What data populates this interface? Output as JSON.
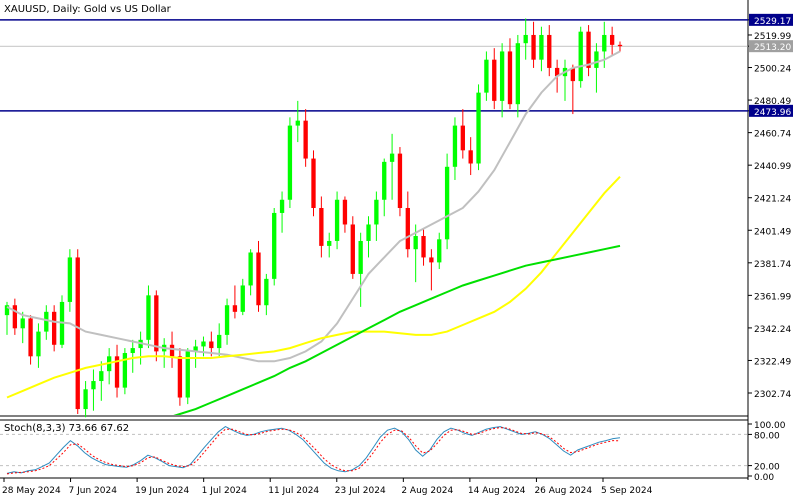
{
  "title": "XAUUSD, Daily:  Gold vs US Dollar",
  "price_labels": [
    "2529.17",
    "2519.99",
    "2513.20",
    "2500.24",
    "2480.49",
    "2473.96",
    "2460.74",
    "2440.99",
    "2421.24",
    "2401.49",
    "2381.74",
    "2361.99",
    "2342.24",
    "2322.49",
    "2302.74"
  ],
  "stoch_axis_labels": [
    "100.00",
    "80.00",
    "20.00",
    "0.00"
  ],
  "date_labels": [
    "28 May 2024",
    "7 Jun 2024",
    "19 Jun 2024",
    "1 Jul 2024",
    "11 Jul 2024",
    "23 Jul 2024",
    "2 Aug 2024",
    "14 Aug 2024",
    "26 Aug 2024",
    "5 Sep 2024"
  ],
  "stoch_label": "Stoch(8,3,3) 73.66 67.62",
  "colors": {
    "bull": "#00ff00",
    "bear": "#ff0000",
    "level_line": "#00008b",
    "ma_fast": "#c0c0c0",
    "ma_mid": "#ffff00",
    "ma_slow": "#00e000",
    "stoch_main": "#2e8bbf",
    "stoch_signal": "#ff0000"
  },
  "chart_data": [
    {
      "type": "candlestick",
      "title": "XAUUSD, Daily:  Gold vs US Dollar",
      "ylim": [
        2290,
        2540
      ],
      "levels": [
        2529.17,
        2473.96
      ],
      "current_price": 2513.2,
      "dates": [
        "28 May 2024",
        "7 Jun 2024",
        "19 Jun 2024",
        "1 Jul 2024",
        "11 Jul 2024",
        "23 Jul 2024",
        "2 Aug 2024",
        "14 Aug 2024",
        "26 Aug 2024",
        "5 Sep 2024"
      ],
      "candles": [
        [
          2350,
          2358,
          2338,
          2356
        ],
        [
          2356,
          2360,
          2338,
          2342
        ],
        [
          2342,
          2352,
          2333,
          2348
        ],
        [
          2348,
          2350,
          2320,
          2325
        ],
        [
          2325,
          2345,
          2318,
          2340
        ],
        [
          2340,
          2356,
          2335,
          2352
        ],
        [
          2352,
          2356,
          2328,
          2332
        ],
        [
          2332,
          2362,
          2330,
          2358
        ],
        [
          2358,
          2390,
          2352,
          2385
        ],
        [
          2385,
          2390,
          2290,
          2293
        ],
        [
          2293,
          2310,
          2288,
          2305
        ],
        [
          2305,
          2317,
          2292,
          2310
        ],
        [
          2310,
          2322,
          2298,
          2316
        ],
        [
          2316,
          2330,
          2308,
          2325
        ],
        [
          2325,
          2332,
          2300,
          2306
        ],
        [
          2306,
          2330,
          2302,
          2327
        ],
        [
          2327,
          2335,
          2315,
          2330
        ],
        [
          2330,
          2340,
          2320,
          2335
        ],
        [
          2335,
          2368,
          2330,
          2362
        ],
        [
          2362,
          2365,
          2322,
          2328
        ],
        [
          2328,
          2336,
          2318,
          2332
        ],
        [
          2332,
          2340,
          2318,
          2325
        ],
        [
          2325,
          2330,
          2295,
          2300
        ],
        [
          2300,
          2330,
          2296,
          2328
        ],
        [
          2328,
          2335,
          2318,
          2331
        ],
        [
          2331,
          2337,
          2325,
          2334
        ],
        [
          2334,
          2340,
          2325,
          2330
        ],
        [
          2330,
          2345,
          2325,
          2338
        ],
        [
          2338,
          2360,
          2332,
          2356
        ],
        [
          2356,
          2368,
          2348,
          2352
        ],
        [
          2352,
          2372,
          2350,
          2368
        ],
        [
          2368,
          2390,
          2362,
          2388
        ],
        [
          2388,
          2395,
          2352,
          2356
        ],
        [
          2356,
          2375,
          2350,
          2372
        ],
        [
          2372,
          2415,
          2368,
          2412
        ],
        [
          2412,
          2425,
          2400,
          2420
        ],
        [
          2420,
          2470,
          2415,
          2465
        ],
        [
          2465,
          2480,
          2455,
          2468
        ],
        [
          2468,
          2475,
          2440,
          2445
        ],
        [
          2445,
          2450,
          2410,
          2415
        ],
        [
          2415,
          2422,
          2385,
          2392
        ],
        [
          2392,
          2400,
          2385,
          2395
        ],
        [
          2395,
          2425,
          2390,
          2420
        ],
        [
          2420,
          2422,
          2400,
          2405
        ],
        [
          2405,
          2410,
          2372,
          2375
        ],
        [
          2375,
          2400,
          2355,
          2395
        ],
        [
          2395,
          2410,
          2385,
          2405
        ],
        [
          2405,
          2425,
          2395,
          2420
        ],
        [
          2420,
          2445,
          2410,
          2443
        ],
        [
          2443,
          2460,
          2420,
          2448
        ],
        [
          2448,
          2452,
          2410,
          2415
        ],
        [
          2415,
          2425,
          2385,
          2390
        ],
        [
          2390,
          2405,
          2370,
          2398
        ],
        [
          2398,
          2402,
          2380,
          2385
        ],
        [
          2385,
          2390,
          2365,
          2382
        ],
        [
          2382,
          2400,
          2378,
          2396
        ],
        [
          2396,
          2448,
          2390,
          2440
        ],
        [
          2440,
          2470,
          2432,
          2465
        ],
        [
          2465,
          2475,
          2445,
          2450
        ],
        [
          2450,
          2458,
          2435,
          2442
        ],
        [
          2442,
          2490,
          2438,
          2485
        ],
        [
          2485,
          2510,
          2480,
          2505
        ],
        [
          2505,
          2512,
          2475,
          2480
        ],
        [
          2480,
          2515,
          2470,
          2510
        ],
        [
          2510,
          2518,
          2475,
          2478
        ],
        [
          2478,
          2520,
          2470,
          2515
        ],
        [
          2515,
          2530,
          2505,
          2520
        ],
        [
          2520,
          2528,
          2500,
          2505
        ],
        [
          2505,
          2525,
          2498,
          2520
        ],
        [
          2520,
          2526,
          2495,
          2500
        ],
        [
          2500,
          2505,
          2485,
          2495
        ],
        [
          2495,
          2505,
          2480,
          2500
        ],
        [
          2500,
          2502,
          2472,
          2492
        ],
        [
          2492,
          2525,
          2488,
          2522
        ],
        [
          2522,
          2526,
          2495,
          2500
        ],
        [
          2500,
          2515,
          2485,
          2510
        ],
        [
          2510,
          2528,
          2500,
          2520
        ],
        [
          2520,
          2525,
          2508,
          2514
        ],
        [
          2514,
          2516,
          2510,
          2513.2
        ]
      ],
      "moving_averages": [
        {
          "color": "#c0c0c0",
          "values": [
            2355,
            2350,
            2348,
            2346,
            2345,
            2340,
            2338,
            2336,
            2334,
            2332,
            2330,
            2329,
            2328,
            2327,
            2326,
            2324,
            2322,
            2322,
            2324,
            2328,
            2334,
            2345,
            2360,
            2375,
            2385,
            2395,
            2400,
            2405,
            2410,
            2415,
            2425,
            2438,
            2455,
            2472,
            2485,
            2495,
            2500,
            2502,
            2505,
            2510
          ]
        },
        {
          "color": "#ffff00",
          "values": [
            2300,
            2304,
            2308,
            2312,
            2315,
            2318,
            2320,
            2322,
            2324,
            2325,
            2325,
            2324,
            2324,
            2324,
            2325,
            2326,
            2327,
            2328,
            2330,
            2333,
            2336,
            2338,
            2340,
            2340,
            2340,
            2339,
            2338,
            2338,
            2340,
            2344,
            2348,
            2352,
            2358,
            2366,
            2376,
            2388,
            2400,
            2412,
            2424,
            2434
          ]
        },
        {
          "color": "#00e000",
          "values": [
            2250,
            2254,
            2258,
            2262,
            2266,
            2270,
            2274,
            2278,
            2281,
            2284,
            2287,
            2290,
            2293,
            2297,
            2301,
            2305,
            2309,
            2313,
            2318,
            2322,
            2327,
            2332,
            2337,
            2342,
            2347,
            2352,
            2356,
            2360,
            2364,
            2368,
            2371,
            2374,
            2377,
            2380,
            2382,
            2384,
            2386,
            2388,
            2390,
            2392
          ]
        }
      ]
    },
    {
      "type": "line",
      "title": "Stoch(8,3,3) 73.66 67.62",
      "ylim": [
        0,
        100
      ],
      "levels": [
        80,
        20
      ],
      "series": [
        {
          "color": "#2e8bbf",
          "values": [
            5,
            8,
            6,
            10,
            12,
            18,
            25,
            40,
            55,
            68,
            58,
            45,
            35,
            28,
            22,
            20,
            18,
            17,
            22,
            30,
            40,
            35,
            28,
            20,
            18,
            16,
            22,
            38,
            55,
            70,
            85,
            95,
            88,
            82,
            78,
            80,
            85,
            88,
            90,
            92,
            88,
            80,
            70,
            55,
            40,
            25,
            15,
            10,
            8,
            12,
            20,
            35,
            55,
            75,
            88,
            92,
            85,
            70,
            50,
            38,
            50,
            70,
            85,
            92,
            88,
            82,
            78,
            84,
            90,
            93,
            95,
            90,
            85,
            80,
            82,
            85,
            80,
            72,
            60,
            48,
            40,
            50,
            55,
            60,
            65,
            68,
            72,
            73.66
          ]
        },
        {
          "color": "#ff0000",
          "values": [
            4,
            6,
            7,
            8,
            10,
            14,
            20,
            32,
            45,
            60,
            62,
            52,
            40,
            32,
            26,
            22,
            20,
            18,
            20,
            26,
            35,
            37,
            30,
            24,
            20,
            18,
            20,
            30,
            46,
            62,
            78,
            90,
            90,
            85,
            80,
            79,
            82,
            86,
            88,
            90,
            89,
            84,
            75,
            62,
            48,
            33,
            22,
            14,
            10,
            10,
            15,
            28,
            45,
            65,
            80,
            88,
            87,
            75,
            58,
            44,
            48,
            62,
            78,
            88,
            89,
            85,
            80,
            82,
            87,
            91,
            93,
            92,
            87,
            82,
            81,
            83,
            81,
            75,
            65,
            53,
            45,
            47,
            52,
            57,
            62,
            65,
            68,
            67.62
          ]
        }
      ]
    }
  ]
}
